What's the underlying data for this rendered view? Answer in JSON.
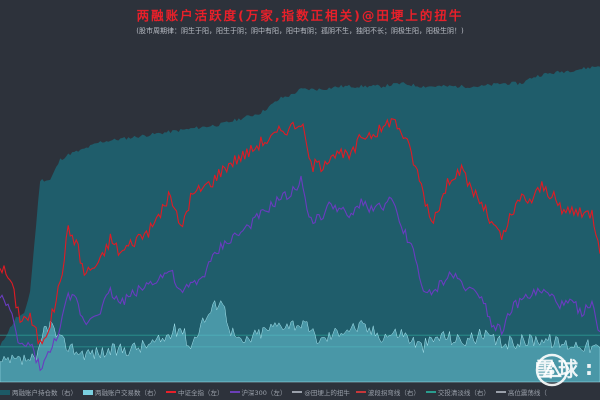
{
  "title": "两融账户活跃度(万家,指数正相关)@田埂上的扭牛",
  "subtitle": "(股市周期律：阴生于阳，阳生于阴；阴中有阳，阳中有阴；孤阴不生，独阳不长；阴极生阳，阳极生阴！)",
  "watermark": "雪球",
  "watermark_trailing": ":",
  "legend": [
    {
      "label": "两融账户持仓数（右）",
      "color": "#1c5a66",
      "kind": "area"
    },
    {
      "label": "两融账户交易数（右）",
      "color": "#7ad0e0",
      "kind": "area"
    },
    {
      "label": "中证全指（左）",
      "color": "#e8202a",
      "kind": "line"
    },
    {
      "label": "沪深300（左）",
      "color": "#6b3fb8",
      "kind": "line"
    },
    {
      "label": "@田埂上的扭牛",
      "color": "#9aa0aa",
      "kind": "line"
    },
    {
      "label": "波段拐弯线（右）",
      "color": "#c8373a",
      "kind": "line"
    },
    {
      "label": "交投清淡线（右）",
      "color": "#2a9d8f",
      "kind": "line"
    },
    {
      "label": "高位震荡线（",
      "color": "#9aa0aa",
      "kind": "line"
    }
  ],
  "colors": {
    "holding_area": "#1f5d6b",
    "trade_area": "#6cc6d8",
    "csi_all": "#e01b24",
    "hs300": "#6a3cc0",
    "reference_lines": "#2fa39a"
  },
  "chart_data": {
    "type": "area",
    "title": "两融账户活跃度(万家,指数正相关)@田埂上的扭牛",
    "x_count": 300,
    "reference_lines_right": [
      0.16,
      0.12
    ],
    "series": [
      {
        "name": "两融账户持仓数（右）",
        "kind": "area",
        "keyframes": [
          [
            0,
            0.12
          ],
          [
            3,
            0.16
          ],
          [
            8,
            0.22
          ],
          [
            12,
            0.23
          ],
          [
            15,
            0.31
          ],
          [
            20,
            0.69
          ],
          [
            22,
            0.69
          ],
          [
            25,
            0.69
          ],
          [
            30,
            0.76
          ],
          [
            35,
            0.78
          ],
          [
            40,
            0.79
          ],
          [
            50,
            0.82
          ],
          [
            60,
            0.83
          ],
          [
            70,
            0.84
          ],
          [
            80,
            0.85
          ],
          [
            90,
            0.86
          ],
          [
            100,
            0.87
          ],
          [
            110,
            0.88
          ],
          [
            120,
            0.9
          ],
          [
            130,
            0.92
          ],
          [
            140,
            0.97
          ],
          [
            145,
            0.98
          ],
          [
            150,
            1.0
          ],
          [
            160,
            1.0
          ],
          [
            170,
            1.01
          ],
          [
            180,
            1.01
          ],
          [
            190,
            1.01
          ],
          [
            200,
            1.02
          ],
          [
            210,
            1.01
          ],
          [
            220,
            1.01
          ],
          [
            230,
            1.01
          ],
          [
            240,
            1.01
          ],
          [
            250,
            1.02
          ],
          [
            260,
            1.02
          ],
          [
            265,
            1.04
          ],
          [
            270,
            1.05
          ],
          [
            280,
            1.06
          ],
          [
            290,
            1.07
          ],
          [
            299,
            1.08
          ]
        ]
      },
      {
        "name": "两融账户交易数（右）",
        "kind": "area",
        "keyframes": [
          [
            0,
            0.06
          ],
          [
            5,
            0.07
          ],
          [
            10,
            0.07
          ],
          [
            15,
            0.08
          ],
          [
            18,
            0.06
          ],
          [
            22,
            0.18
          ],
          [
            25,
            0.2
          ],
          [
            30,
            0.14
          ],
          [
            40,
            0.1
          ],
          [
            50,
            0.1
          ],
          [
            60,
            0.11
          ],
          [
            70,
            0.12
          ],
          [
            80,
            0.14
          ],
          [
            90,
            0.19
          ],
          [
            95,
            0.12
          ],
          [
            100,
            0.2
          ],
          [
            105,
            0.24
          ],
          [
            110,
            0.29
          ],
          [
            115,
            0.18
          ],
          [
            120,
            0.13
          ],
          [
            130,
            0.17
          ],
          [
            140,
            0.2
          ],
          [
            150,
            0.2
          ],
          [
            160,
            0.14
          ],
          [
            170,
            0.18
          ],
          [
            180,
            0.19
          ],
          [
            190,
            0.16
          ],
          [
            200,
            0.17
          ],
          [
            210,
            0.12
          ],
          [
            220,
            0.16
          ],
          [
            230,
            0.14
          ],
          [
            240,
            0.16
          ],
          [
            250,
            0.13
          ],
          [
            260,
            0.14
          ],
          [
            270,
            0.15
          ],
          [
            280,
            0.13
          ],
          [
            290,
            0.13
          ],
          [
            299,
            0.11
          ]
        ]
      },
      {
        "name": "中证全指（左）",
        "kind": "line",
        "keyframes": [
          [
            0,
            0.4
          ],
          [
            5,
            0.35
          ],
          [
            10,
            0.22
          ],
          [
            15,
            0.22
          ],
          [
            20,
            0.13
          ],
          [
            25,
            0.2
          ],
          [
            30,
            0.34
          ],
          [
            34,
            0.52
          ],
          [
            38,
            0.48
          ],
          [
            42,
            0.37
          ],
          [
            50,
            0.41
          ],
          [
            55,
            0.49
          ],
          [
            60,
            0.44
          ],
          [
            68,
            0.49
          ],
          [
            75,
            0.52
          ],
          [
            80,
            0.58
          ],
          [
            85,
            0.64
          ],
          [
            90,
            0.52
          ],
          [
            95,
            0.63
          ],
          [
            100,
            0.66
          ],
          [
            105,
            0.68
          ],
          [
            110,
            0.72
          ],
          [
            115,
            0.75
          ],
          [
            120,
            0.77
          ],
          [
            125,
            0.79
          ],
          [
            130,
            0.82
          ],
          [
            135,
            0.83
          ],
          [
            140,
            0.86
          ],
          [
            145,
            0.87
          ],
          [
            150,
            0.89
          ],
          [
            155,
            0.74
          ],
          [
            160,
            0.74
          ],
          [
            165,
            0.78
          ],
          [
            175,
            0.77
          ],
          [
            180,
            0.84
          ],
          [
            185,
            0.85
          ],
          [
            190,
            0.86
          ],
          [
            195,
            0.9
          ],
          [
            200,
            0.86
          ],
          [
            205,
            0.78
          ],
          [
            210,
            0.67
          ],
          [
            215,
            0.55
          ],
          [
            220,
            0.62
          ],
          [
            225,
            0.71
          ],
          [
            230,
            0.72
          ],
          [
            235,
            0.66
          ],
          [
            240,
            0.61
          ],
          [
            245,
            0.54
          ],
          [
            250,
            0.49
          ],
          [
            255,
            0.57
          ],
          [
            260,
            0.63
          ],
          [
            265,
            0.62
          ],
          [
            270,
            0.67
          ],
          [
            275,
            0.64
          ],
          [
            280,
            0.58
          ],
          [
            285,
            0.59
          ],
          [
            290,
            0.57
          ],
          [
            295,
            0.58
          ],
          [
            299,
            0.46
          ]
        ]
      },
      {
        "name": "沪深300（左）",
        "kind": "line",
        "keyframes": [
          [
            0,
            0.3
          ],
          [
            5,
            0.24
          ],
          [
            10,
            0.12
          ],
          [
            15,
            0.13
          ],
          [
            20,
            0.05
          ],
          [
            25,
            0.1
          ],
          [
            30,
            0.19
          ],
          [
            34,
            0.29
          ],
          [
            38,
            0.28
          ],
          [
            42,
            0.2
          ],
          [
            50,
            0.25
          ],
          [
            55,
            0.31
          ],
          [
            60,
            0.27
          ],
          [
            68,
            0.31
          ],
          [
            75,
            0.34
          ],
          [
            80,
            0.36
          ],
          [
            85,
            0.38
          ],
          [
            90,
            0.3
          ],
          [
            95,
            0.33
          ],
          [
            100,
            0.35
          ],
          [
            105,
            0.41
          ],
          [
            110,
            0.46
          ],
          [
            115,
            0.49
          ],
          [
            120,
            0.51
          ],
          [
            125,
            0.54
          ],
          [
            130,
            0.57
          ],
          [
            135,
            0.6
          ],
          [
            140,
            0.63
          ],
          [
            145,
            0.64
          ],
          [
            150,
            0.69
          ],
          [
            155,
            0.55
          ],
          [
            160,
            0.56
          ],
          [
            165,
            0.61
          ],
          [
            175,
            0.56
          ],
          [
            180,
            0.62
          ],
          [
            185,
            0.59
          ],
          [
            190,
            0.6
          ],
          [
            195,
            0.62
          ],
          [
            200,
            0.53
          ],
          [
            205,
            0.47
          ],
          [
            210,
            0.33
          ],
          [
            215,
            0.29
          ],
          [
            220,
            0.34
          ],
          [
            225,
            0.37
          ],
          [
            230,
            0.34
          ],
          [
            235,
            0.31
          ],
          [
            240,
            0.3
          ],
          [
            245,
            0.2
          ],
          [
            250,
            0.18
          ],
          [
            255,
            0.25
          ],
          [
            260,
            0.28
          ],
          [
            265,
            0.3
          ],
          [
            270,
            0.31
          ],
          [
            275,
            0.29
          ],
          [
            280,
            0.26
          ],
          [
            285,
            0.27
          ],
          [
            290,
            0.24
          ],
          [
            295,
            0.26
          ],
          [
            299,
            0.17
          ]
        ]
      }
    ]
  }
}
